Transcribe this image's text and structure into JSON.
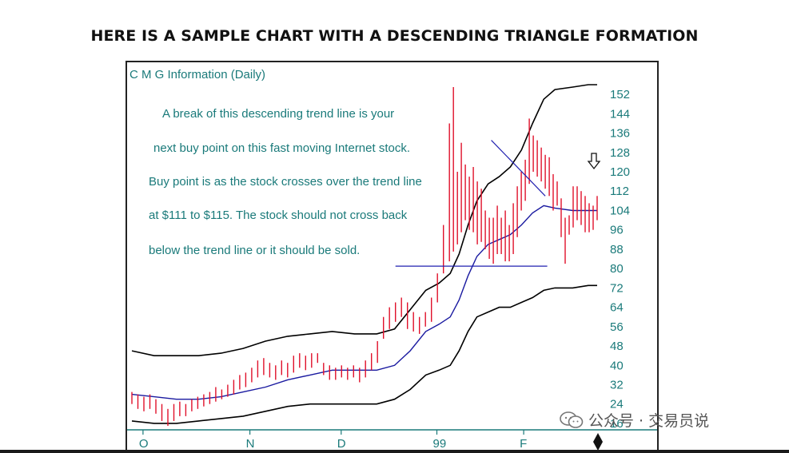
{
  "page": {
    "heading": "HERE IS A SAMPLE CHART WITH A DESCENDING TRIANGLE FORMATION",
    "watermark": "公众号 · 交易员说"
  },
  "chart_data": {
    "type": "bar",
    "title": "C M G Information (Daily)",
    "annotation_lines": [
      "A break of this descending trend line is your",
      "next buy point on this fast moving Internet stock.",
      "Buy point is as the stock crosses over the trend line",
      "at $111 to $115. The stock should not cross back",
      "below the trend line or it should be sold."
    ],
    "y_ticks": [
      152,
      144,
      136,
      128,
      120,
      112,
      104,
      96,
      88,
      80,
      72,
      64,
      56,
      48,
      40,
      32,
      24,
      16
    ],
    "ylim": [
      14,
      156
    ],
    "x_tick_labels": [
      {
        "label": "O",
        "x": 5
      },
      {
        "label": "N",
        "x": 53
      },
      {
        "label": "D",
        "x": 94
      },
      {
        "label": "99",
        "x": 137
      },
      {
        "label": "F",
        "x": 176
      }
    ],
    "xlim": [
      0,
      209
    ],
    "colors": {
      "price_bars": "#e0102a",
      "bands": "#000000",
      "moving_average": "#1a1aa0",
      "trend_lines": "#2020b0",
      "labels": "#1a7a7a"
    },
    "support_line": {
      "x1": 132,
      "x2": 208,
      "y": 81
    },
    "descending_trendline": {
      "x1": 180,
      "y1": 133,
      "x2": 207,
      "y2": 110
    },
    "price_bars": [
      [
        0,
        29,
        24
      ],
      [
        3,
        28,
        22
      ],
      [
        6,
        27,
        21
      ],
      [
        9,
        28,
        22
      ],
      [
        12,
        26,
        20
      ],
      [
        15,
        24,
        17
      ],
      [
        18,
        22,
        15
      ],
      [
        21,
        24,
        17
      ],
      [
        24,
        25,
        19
      ],
      [
        27,
        24,
        19
      ],
      [
        30,
        26,
        21
      ],
      [
        33,
        27,
        22
      ],
      [
        36,
        28,
        23
      ],
      [
        39,
        29,
        24
      ],
      [
        42,
        31,
        25
      ],
      [
        45,
        30,
        26
      ],
      [
        48,
        32,
        27
      ],
      [
        51,
        34,
        28
      ],
      [
        54,
        36,
        30
      ],
      [
        57,
        37,
        31
      ],
      [
        60,
        39,
        33
      ],
      [
        63,
        42,
        35
      ],
      [
        66,
        43,
        36
      ],
      [
        69,
        41,
        35
      ],
      [
        72,
        40,
        34
      ],
      [
        75,
        42,
        36
      ],
      [
        78,
        41,
        35
      ],
      [
        81,
        44,
        37
      ],
      [
        84,
        45,
        39
      ],
      [
        87,
        44,
        38
      ],
      [
        90,
        45,
        39
      ],
      [
        93,
        45,
        41
      ],
      [
        96,
        41,
        36
      ],
      [
        99,
        40,
        34
      ],
      [
        102,
        39,
        34
      ],
      [
        105,
        40,
        35
      ],
      [
        108,
        39,
        34
      ],
      [
        111,
        40,
        35
      ],
      [
        114,
        39,
        33
      ],
      [
        117,
        42,
        35
      ],
      [
        120,
        45,
        38
      ],
      [
        123,
        50,
        41
      ],
      [
        126,
        60,
        51
      ],
      [
        129,
        64,
        55
      ],
      [
        132,
        66,
        58
      ],
      [
        135,
        68,
        60
      ],
      [
        138,
        66,
        55
      ],
      [
        141,
        62,
        54
      ],
      [
        144,
        60,
        53
      ],
      [
        147,
        62,
        56
      ],
      [
        150,
        68,
        58
      ],
      [
        153,
        78,
        66
      ],
      [
        156,
        98,
        78
      ],
      [
        159,
        140,
        83
      ],
      [
        161,
        155,
        87
      ],
      [
        163,
        120,
        90
      ],
      [
        165,
        132,
        95
      ],
      [
        167,
        123,
        100
      ],
      [
        169,
        118,
        96
      ],
      [
        171,
        122,
        95
      ],
      [
        173,
        116,
        90
      ],
      [
        175,
        113,
        91
      ],
      [
        177,
        104,
        88
      ],
      [
        179,
        101,
        84
      ],
      [
        181,
        101,
        82
      ],
      [
        183,
        106,
        86
      ],
      [
        185,
        101,
        86
      ],
      [
        187,
        104,
        83
      ],
      [
        189,
        98,
        83
      ],
      [
        191,
        107,
        86
      ],
      [
        193,
        114,
        93
      ],
      [
        195,
        120,
        104
      ],
      [
        197,
        125,
        108
      ],
      [
        199,
        142,
        115
      ],
      [
        201,
        135,
        120
      ],
      [
        203,
        133,
        118
      ],
      [
        205,
        130,
        116
      ],
      [
        207,
        127,
        113
      ],
      [
        209,
        126,
        110
      ],
      [
        211,
        119,
        104
      ],
      [
        213,
        116,
        106
      ],
      [
        215,
        109,
        93
      ],
      [
        217,
        101,
        82
      ],
      [
        219,
        102,
        94
      ],
      [
        221,
        114,
        97
      ],
      [
        223,
        114,
        100
      ],
      [
        225,
        112,
        98
      ],
      [
        227,
        110,
        95
      ],
      [
        229,
        107,
        95
      ],
      [
        231,
        106,
        96
      ],
      [
        233,
        110,
        100
      ]
    ],
    "upper_band": [
      [
        0,
        46
      ],
      [
        10,
        44
      ],
      [
        20,
        44
      ],
      [
        30,
        44
      ],
      [
        40,
        45
      ],
      [
        50,
        47
      ],
      [
        60,
        50
      ],
      [
        70,
        52
      ],
      [
        80,
        53
      ],
      [
        90,
        54
      ],
      [
        100,
        53
      ],
      [
        110,
        53
      ],
      [
        118,
        55
      ],
      [
        125,
        63
      ],
      [
        132,
        71
      ],
      [
        138,
        74
      ],
      [
        143,
        78
      ],
      [
        147,
        86
      ],
      [
        151,
        98
      ],
      [
        155,
        108
      ],
      [
        160,
        115
      ],
      [
        165,
        118
      ],
      [
        170,
        122
      ],
      [
        175,
        129
      ],
      [
        180,
        140
      ],
      [
        185,
        150
      ],
      [
        190,
        154
      ],
      [
        198,
        155
      ],
      [
        205,
        156
      ],
      [
        209,
        156
      ]
    ],
    "lower_band": [
      [
        0,
        17
      ],
      [
        10,
        16
      ],
      [
        20,
        16
      ],
      [
        30,
        17
      ],
      [
        40,
        18
      ],
      [
        50,
        19
      ],
      [
        60,
        21
      ],
      [
        70,
        23
      ],
      [
        80,
        24
      ],
      [
        90,
        24
      ],
      [
        100,
        24
      ],
      [
        110,
        24
      ],
      [
        118,
        26
      ],
      [
        125,
        30
      ],
      [
        132,
        36
      ],
      [
        138,
        38
      ],
      [
        143,
        40
      ],
      [
        147,
        46
      ],
      [
        151,
        54
      ],
      [
        155,
        60
      ],
      [
        160,
        62
      ],
      [
        165,
        64
      ],
      [
        170,
        64
      ],
      [
        175,
        66
      ],
      [
        180,
        68
      ],
      [
        185,
        71
      ],
      [
        190,
        72
      ],
      [
        198,
        72
      ],
      [
        205,
        73
      ],
      [
        209,
        73
      ]
    ],
    "moving_average": [
      [
        0,
        28
      ],
      [
        10,
        27
      ],
      [
        20,
        26
      ],
      [
        30,
        26
      ],
      [
        40,
        27
      ],
      [
        50,
        29
      ],
      [
        60,
        31
      ],
      [
        70,
        34
      ],
      [
        80,
        36
      ],
      [
        90,
        38
      ],
      [
        100,
        38
      ],
      [
        110,
        38
      ],
      [
        118,
        40
      ],
      [
        125,
        46
      ],
      [
        132,
        54
      ],
      [
        138,
        57
      ],
      [
        143,
        60
      ],
      [
        147,
        67
      ],
      [
        151,
        77
      ],
      [
        155,
        85
      ],
      [
        160,
        90
      ],
      [
        165,
        92
      ],
      [
        170,
        94
      ],
      [
        175,
        98
      ],
      [
        180,
        103
      ],
      [
        185,
        106
      ],
      [
        190,
        105
      ],
      [
        198,
        104
      ],
      [
        205,
        104
      ],
      [
        209,
        104
      ]
    ]
  }
}
